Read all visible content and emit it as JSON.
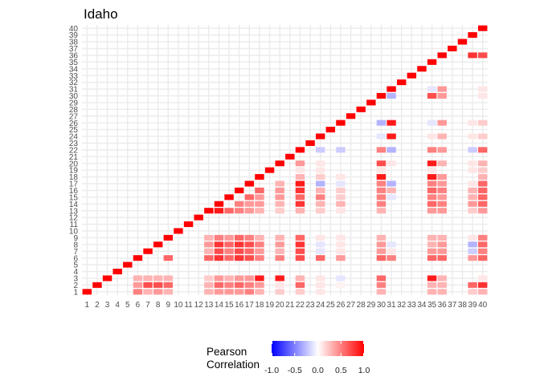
{
  "chart_data": {
    "type": "heatmap",
    "title": "Idaho",
    "xlabel": "",
    "ylabel": "",
    "x_ticks": [
      "1",
      "2",
      "3",
      "4",
      "5",
      "6",
      "7",
      "8",
      "9",
      "10",
      "11",
      "12",
      "13",
      "14",
      "15",
      "16",
      "17",
      "18",
      "19",
      "20",
      "21",
      "22",
      "23",
      "24",
      "25",
      "26",
      "27",
      "28",
      "29",
      "30",
      "31",
      "32",
      "33",
      "34",
      "35",
      "36",
      "37",
      "38",
      "39",
      "40"
    ],
    "y_ticks": [
      "1",
      "2",
      "3",
      "4",
      "5",
      "6",
      "7",
      "8",
      "9",
      "10",
      "11",
      "12",
      "13",
      "14",
      "15",
      "16",
      "17",
      "18",
      "19",
      "20",
      "21",
      "22",
      "23",
      "24",
      "25",
      "26",
      "27",
      "28",
      "29",
      "30",
      "31",
      "32",
      "33",
      "34",
      "35",
      "36",
      "37",
      "38",
      "39",
      "40"
    ],
    "grid": true,
    "diagonal_value": 1.0,
    "legend": {
      "title": [
        "Pearson",
        "Correlation"
      ],
      "ticks": [
        "-1.0",
        "-0.5",
        "0.0",
        "0.5",
        "1.0"
      ],
      "range": [
        -1,
        1
      ],
      "low_color": "#0000ff",
      "mid_color": "#ffffff",
      "high_color": "#ff0000",
      "position": "bottom"
    },
    "cells": [
      [
        1,
        6,
        0.5
      ],
      [
        1,
        7,
        0.3
      ],
      [
        1,
        8,
        0.4
      ],
      [
        1,
        9,
        0.3
      ],
      [
        1,
        13,
        0.3
      ],
      [
        1,
        14,
        0.4
      ],
      [
        1,
        15,
        0.4
      ],
      [
        1,
        16,
        0.4
      ],
      [
        1,
        17,
        0.5
      ],
      [
        1,
        18,
        0.3
      ],
      [
        1,
        20,
        0.2
      ],
      [
        1,
        22,
        0.2
      ],
      [
        1,
        24,
        0.1
      ],
      [
        1,
        30,
        0.3
      ],
      [
        1,
        35,
        0.3
      ],
      [
        1,
        36,
        0.3
      ],
      [
        1,
        39,
        0.2
      ],
      [
        1,
        40,
        0.3
      ],
      [
        2,
        6,
        0.4
      ],
      [
        2,
        7,
        0.7
      ],
      [
        2,
        8,
        0.7
      ],
      [
        2,
        9,
        0.6
      ],
      [
        2,
        13,
        0.3
      ],
      [
        2,
        14,
        0.6
      ],
      [
        2,
        15,
        0.5
      ],
      [
        2,
        16,
        0.6
      ],
      [
        2,
        17,
        0.5
      ],
      [
        2,
        18,
        0.4
      ],
      [
        2,
        20,
        0.1
      ],
      [
        2,
        22,
        0.6
      ],
      [
        2,
        24,
        0.1
      ],
      [
        2,
        26,
        0.05
      ],
      [
        2,
        30,
        0.5
      ],
      [
        2,
        35,
        0.3
      ],
      [
        2,
        36,
        0.3
      ],
      [
        2,
        39,
        0.6
      ],
      [
        2,
        40,
        0.8
      ],
      [
        3,
        6,
        0.3
      ],
      [
        3,
        7,
        0.3
      ],
      [
        3,
        8,
        0.3
      ],
      [
        3,
        9,
        0.3
      ],
      [
        3,
        13,
        0.2
      ],
      [
        3,
        14,
        0.4
      ],
      [
        3,
        15,
        0.3
      ],
      [
        3,
        16,
        0.4
      ],
      [
        3,
        17,
        0.4
      ],
      [
        3,
        18,
        0.9
      ],
      [
        3,
        20,
        0.9
      ],
      [
        3,
        22,
        0.3
      ],
      [
        3,
        24,
        0.1
      ],
      [
        3,
        26,
        -0.1
      ],
      [
        3,
        30,
        0.6
      ],
      [
        3,
        35,
        0.9
      ],
      [
        3,
        36,
        0.3
      ],
      [
        3,
        40,
        0.1
      ],
      [
        6,
        9,
        0.6
      ],
      [
        6,
        13,
        0.6
      ],
      [
        6,
        14,
        0.8
      ],
      [
        6,
        15,
        0.6
      ],
      [
        6,
        16,
        0.8
      ],
      [
        6,
        17,
        0.7
      ],
      [
        6,
        18,
        0.5
      ],
      [
        6,
        20,
        0.5
      ],
      [
        6,
        22,
        0.7
      ],
      [
        6,
        24,
        0.6
      ],
      [
        6,
        26,
        0.4
      ],
      [
        6,
        30,
        0.6
      ],
      [
        6,
        31,
        0.5
      ],
      [
        6,
        35,
        0.6
      ],
      [
        6,
        36,
        0.6
      ],
      [
        6,
        39,
        0.4
      ],
      [
        6,
        40,
        0.6
      ],
      [
        7,
        13,
        0.3
      ],
      [
        7,
        14,
        0.7
      ],
      [
        7,
        15,
        0.5
      ],
      [
        7,
        16,
        0.7
      ],
      [
        7,
        17,
        0.6
      ],
      [
        7,
        18,
        0.4
      ],
      [
        7,
        20,
        0.3
      ],
      [
        7,
        22,
        0.7
      ],
      [
        7,
        24,
        -0.1
      ],
      [
        7,
        26,
        0.1
      ],
      [
        7,
        30,
        0.4
      ],
      [
        7,
        31,
        0.1
      ],
      [
        7,
        35,
        0.4
      ],
      [
        7,
        36,
        0.4
      ],
      [
        7,
        39,
        -0.2
      ],
      [
        7,
        40,
        0.5
      ],
      [
        8,
        13,
        0.4
      ],
      [
        8,
        14,
        0.8
      ],
      [
        8,
        15,
        0.6
      ],
      [
        8,
        16,
        0.8
      ],
      [
        8,
        17,
        0.7
      ],
      [
        8,
        18,
        0.5
      ],
      [
        8,
        20,
        0.4
      ],
      [
        8,
        22,
        0.8
      ],
      [
        8,
        24,
        -0.1
      ],
      [
        8,
        26,
        0.1
      ],
      [
        8,
        30,
        0.4
      ],
      [
        8,
        31,
        -0.1
      ],
      [
        8,
        35,
        0.3
      ],
      [
        8,
        36,
        0.4
      ],
      [
        8,
        39,
        -0.3
      ],
      [
        8,
        40,
        0.6
      ],
      [
        9,
        13,
        0.3
      ],
      [
        9,
        14,
        0.5
      ],
      [
        9,
        15,
        0.4
      ],
      [
        9,
        16,
        0.6
      ],
      [
        9,
        17,
        0.5
      ],
      [
        9,
        18,
        0.3
      ],
      [
        9,
        20,
        0.3
      ],
      [
        9,
        22,
        0.6
      ],
      [
        9,
        24,
        0.1
      ],
      [
        9,
        26,
        0.1
      ],
      [
        9,
        30,
        0.3
      ],
      [
        9,
        35,
        0.3
      ],
      [
        9,
        36,
        0.3
      ],
      [
        9,
        39,
        0.1
      ],
      [
        9,
        40,
        0.5
      ],
      [
        13,
        14,
        0.9
      ],
      [
        13,
        15,
        0.6
      ],
      [
        13,
        16,
        0.5
      ],
      [
        13,
        17,
        0.4
      ],
      [
        13,
        18,
        0.3
      ],
      [
        13,
        20,
        0.2
      ],
      [
        13,
        22,
        0.3
      ],
      [
        13,
        24,
        0.2
      ],
      [
        13,
        26,
        0.1
      ],
      [
        13,
        30,
        0.3
      ],
      [
        13,
        35,
        0.4
      ],
      [
        13,
        36,
        0.4
      ],
      [
        13,
        39,
        0.2
      ],
      [
        13,
        40,
        0.4
      ],
      [
        14,
        16,
        0.5
      ],
      [
        14,
        17,
        0.4
      ],
      [
        14,
        18,
        0.4
      ],
      [
        14,
        20,
        0.3
      ],
      [
        14,
        22,
        0.8
      ],
      [
        14,
        24,
        0.3
      ],
      [
        14,
        26,
        0.3
      ],
      [
        14,
        30,
        0.5
      ],
      [
        14,
        35,
        0.6
      ],
      [
        14,
        36,
        0.5
      ],
      [
        14,
        39,
        0.4
      ],
      [
        14,
        40,
        0.6
      ],
      [
        15,
        17,
        0.6
      ],
      [
        15,
        18,
        0.4
      ],
      [
        15,
        20,
        0.4
      ],
      [
        15,
        22,
        0.6
      ],
      [
        15,
        24,
        0.5
      ],
      [
        15,
        26,
        0.2
      ],
      [
        15,
        30,
        0.5
      ],
      [
        15,
        31,
        -0.1
      ],
      [
        15,
        35,
        0.5
      ],
      [
        15,
        36,
        0.4
      ],
      [
        15,
        39,
        0.3
      ],
      [
        15,
        40,
        0.6
      ],
      [
        16,
        18,
        0.6
      ],
      [
        16,
        20,
        0.4
      ],
      [
        16,
        22,
        0.8
      ],
      [
        16,
        24,
        0.3
      ],
      [
        16,
        26,
        0.2
      ],
      [
        16,
        30,
        0.5
      ],
      [
        16,
        31,
        0.3
      ],
      [
        16,
        35,
        0.6
      ],
      [
        16,
        36,
        0.5
      ],
      [
        16,
        39,
        0.3
      ],
      [
        16,
        40,
        0.6
      ],
      [
        17,
        20,
        0.3
      ],
      [
        17,
        22,
        0.9
      ],
      [
        17,
        24,
        -0.3
      ],
      [
        17,
        26,
        -0.1
      ],
      [
        17,
        30,
        0.5
      ],
      [
        17,
        31,
        -0.3
      ],
      [
        17,
        35,
        0.5
      ],
      [
        17,
        36,
        0.4
      ],
      [
        17,
        39,
        0.1
      ],
      [
        17,
        40,
        0.6
      ],
      [
        18,
        22,
        0.3
      ],
      [
        18,
        24,
        0.2
      ],
      [
        18,
        26,
        0.1
      ],
      [
        18,
        30,
        0.9
      ],
      [
        18,
        35,
        0.9
      ],
      [
        18,
        36,
        0.4
      ],
      [
        18,
        40,
        0.3
      ],
      [
        19,
        22,
        0.1
      ],
      [
        19,
        24,
        0.1
      ],
      [
        19,
        30,
        0.1
      ],
      [
        19,
        35,
        0.1
      ],
      [
        19,
        39,
        0.1
      ],
      [
        19,
        40,
        0.2
      ],
      [
        20,
        22,
        0.4
      ],
      [
        20,
        24,
        0.1
      ],
      [
        20,
        30,
        0.7
      ],
      [
        20,
        31,
        0.1
      ],
      [
        20,
        35,
        0.9
      ],
      [
        20,
        36,
        0.3
      ],
      [
        20,
        39,
        0.1
      ],
      [
        20,
        40,
        0.3
      ],
      [
        22,
        24,
        -0.2
      ],
      [
        22,
        26,
        -0.2
      ],
      [
        22,
        30,
        0.5
      ],
      [
        22,
        31,
        -0.3
      ],
      [
        22,
        35,
        0.5
      ],
      [
        22,
        36,
        0.4
      ],
      [
        22,
        39,
        -0.2
      ],
      [
        22,
        40,
        0.6
      ],
      [
        24,
        30,
        -0.1
      ],
      [
        24,
        31,
        0.9
      ],
      [
        24,
        35,
        0.1
      ],
      [
        24,
        36,
        0.3
      ],
      [
        24,
        39,
        0.1
      ],
      [
        24,
        40,
        0.2
      ],
      [
        26,
        30,
        -0.3
      ],
      [
        26,
        31,
        0.9
      ],
      [
        26,
        35,
        -0.1
      ],
      [
        26,
        36,
        0.4
      ],
      [
        26,
        39,
        0.1
      ],
      [
        26,
        40,
        0.2
      ],
      [
        30,
        31,
        -0.3
      ],
      [
        30,
        35,
        0.7
      ],
      [
        30,
        36,
        0.4
      ],
      [
        30,
        40,
        0.1
      ],
      [
        31,
        35,
        -0.1
      ],
      [
        31,
        36,
        0.4
      ],
      [
        31,
        40,
        0.1
      ],
      [
        36,
        39,
        0.8
      ],
      [
        36,
        40,
        0.7
      ]
    ]
  }
}
